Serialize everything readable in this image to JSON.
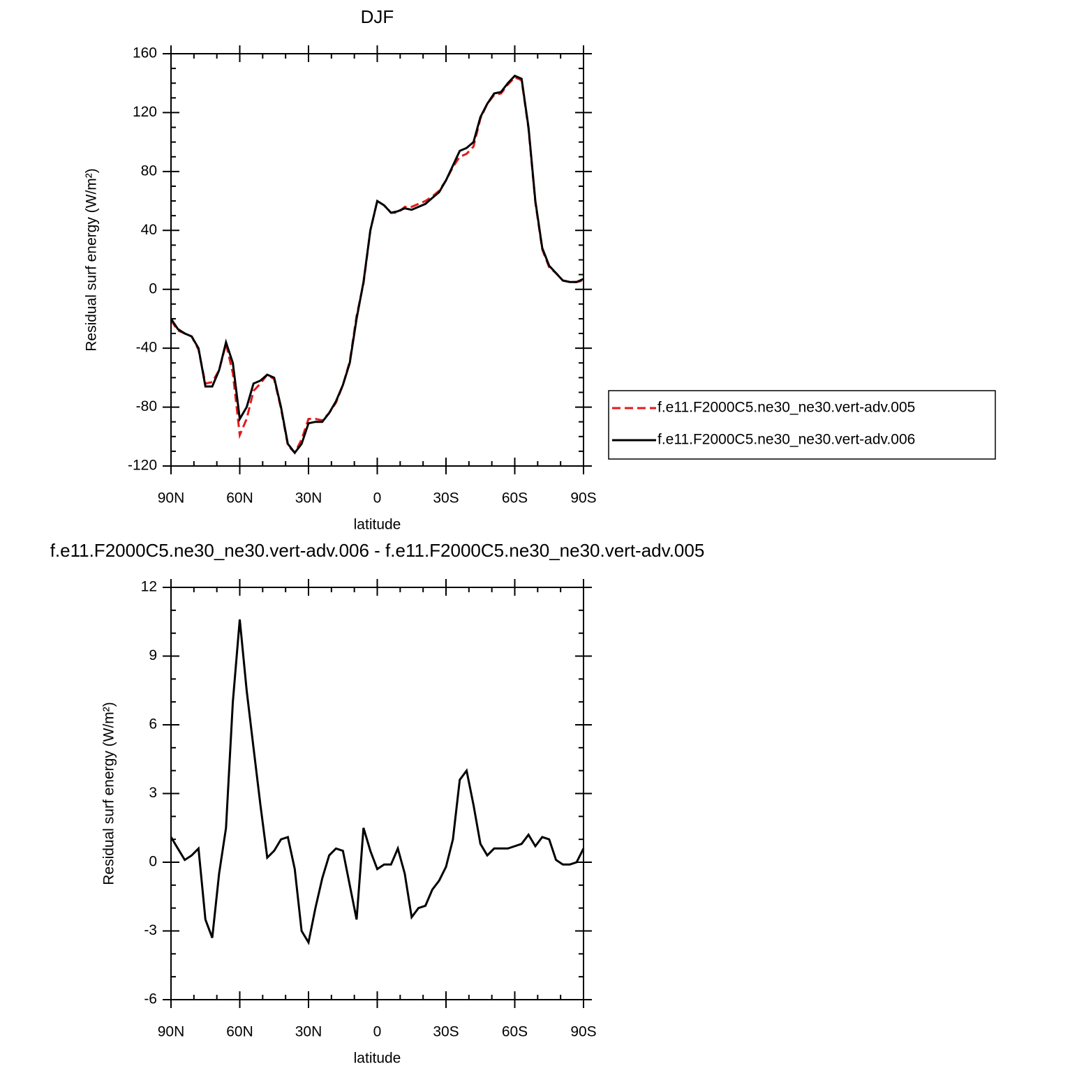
{
  "chart_data": [
    {
      "type": "line",
      "title": "DJF",
      "xlabel": "latitude",
      "ylabel": "Residual surf energy (W/m²)",
      "xlim": [
        90,
        -90
      ],
      "xticks": [
        {
          "value": 90,
          "label": "90N"
        },
        {
          "value": 60,
          "label": "60N"
        },
        {
          "value": 30,
          "label": "30N"
        },
        0,
        {
          "value": -30,
          "label": "30S"
        },
        {
          "value": -60,
          "label": "60S"
        },
        {
          "value": -90,
          "label": "90S"
        }
      ],
      "ylim": [
        -120,
        160
      ],
      "yticks": [
        -120,
        -80,
        -40,
        0,
        40,
        80,
        120,
        160
      ],
      "legend": "right",
      "x": [
        90,
        87,
        84,
        81,
        78,
        75,
        72,
        69,
        66,
        63,
        60,
        57,
        54,
        51,
        48,
        45,
        42,
        39,
        36,
        33,
        30,
        27,
        24,
        21,
        18,
        15,
        12,
        9,
        6,
        3,
        0,
        -3,
        -6,
        -9,
        -12,
        -15,
        -18,
        -21,
        -24,
        -27,
        -30,
        -33,
        -36,
        -39,
        -42,
        -45,
        -48,
        -51,
        -54,
        -57,
        -60,
        -63,
        -66,
        -69,
        -72,
        -75,
        -78,
        -81,
        -84,
        -87,
        -90
      ],
      "series": [
        {
          "name": "f.e11.F2000C5.ne30_ne30.vert-adv.005",
          "color": "#e31a1c",
          "linestyle": "dashed",
          "values": [
            -21,
            -28,
            -30,
            -32,
            -41,
            -64,
            -63,
            -55,
            -37,
            -57,
            -99,
            -88,
            -69,
            -64,
            -58,
            -61,
            -81,
            -106,
            -111,
            -102,
            -88,
            -88,
            -89,
            -84,
            -77,
            -65,
            -49,
            -18,
            4,
            40,
            60,
            57,
            52,
            52,
            56,
            56,
            58,
            60,
            63,
            67,
            74,
            83,
            90,
            92,
            97,
            116,
            126,
            132,
            133,
            139,
            144,
            142,
            109,
            59,
            27,
            15,
            11,
            6,
            5,
            5,
            6
          ]
        },
        {
          "name": "f.e11.F2000C5.ne30_ne30.vert-adv.006",
          "color": "#000000",
          "linestyle": "solid",
          "values": [
            -20,
            -27,
            -30,
            -32,
            -40,
            -66,
            -66,
            -55,
            -36,
            -50,
            -88,
            -80,
            -64,
            -62,
            -58,
            -60,
            -80,
            -105,
            -111,
            -105,
            -91,
            -90,
            -90,
            -84,
            -76,
            -65,
            -50,
            -20,
            5,
            40,
            60,
            57,
            52,
            53,
            55,
            54,
            56,
            58,
            62,
            66,
            74,
            84,
            94,
            96,
            100,
            117,
            126,
            133,
            134,
            140,
            145,
            143,
            110,
            60,
            28,
            16,
            11,
            6,
            5,
            5,
            7
          ]
        }
      ]
    },
    {
      "type": "line",
      "title": "f.e11.F2000C5.ne30_ne30.vert-adv.006 - f.e11.F2000C5.ne30_ne30.vert-adv.005",
      "xlabel": "latitude",
      "ylabel": "Residual surf energy (W/m²)",
      "xlim": [
        90,
        -90
      ],
      "xticks": [
        {
          "value": 90,
          "label": "90N"
        },
        {
          "value": 60,
          "label": "60N"
        },
        {
          "value": 30,
          "label": "30N"
        },
        0,
        {
          "value": -30,
          "label": "30S"
        },
        {
          "value": -60,
          "label": "60S"
        },
        {
          "value": -90,
          "label": "90S"
        }
      ],
      "ylim": [
        -6,
        12
      ],
      "yticks": [
        -6,
        -3,
        0,
        3,
        6,
        9,
        12
      ],
      "x": [
        90,
        87,
        84,
        81,
        78,
        75,
        72,
        69,
        66,
        63,
        60,
        57,
        54,
        51,
        48,
        45,
        42,
        39,
        36,
        33,
        30,
        27,
        24,
        21,
        18,
        15,
        12,
        9,
        6,
        3,
        0,
        -3,
        -6,
        -9,
        -12,
        -15,
        -18,
        -21,
        -24,
        -27,
        -30,
        -33,
        -36,
        -39,
        -42,
        -45,
        -48,
        -51,
        -54,
        -57,
        -60,
        -63,
        -66,
        -69,
        -72,
        -75,
        -78,
        -81,
        -84,
        -87,
        -90
      ],
      "series": [
        {
          "color": "#000000",
          "linestyle": "solid",
          "values": [
            1.1,
            0.6,
            0.1,
            0.3,
            0.6,
            -2.5,
            -3.3,
            -0.5,
            1.5,
            7,
            10.6,
            7.5,
            5,
            2.5,
            0.2,
            0.5,
            1.0,
            1.1,
            -0.3,
            -3,
            -3.5,
            -2,
            -0.7,
            0.3,
            0.6,
            0.5,
            -1,
            -2.5,
            1.5,
            0.5,
            -0.3,
            -0.1,
            -0.1,
            0.6,
            -0.5,
            -2.4,
            -2,
            -1.9,
            -1.2,
            -0.8,
            -0.2,
            1,
            3.6,
            4,
            2.5,
            0.8,
            0.3,
            0.6,
            0.6,
            0.6,
            0.7,
            0.8,
            1.2,
            0.7,
            1.1,
            1.0,
            0.1,
            -0.1,
            -0.1,
            0,
            0.6
          ]
        }
      ]
    }
  ]
}
